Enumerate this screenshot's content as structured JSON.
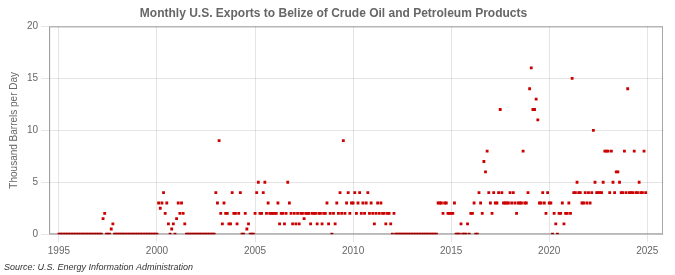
{
  "chart_data": {
    "type": "scatter",
    "title": "Monthly U.S. Exports to Belize of Crude Oil and Petroleum Products",
    "ylabel": "Thousand Barrels per Day",
    "annotation": "Source: U.S. Energy Information Administration",
    "color": "#cc0000",
    "marker": "square",
    "grid": true,
    "xlim": [
      1994.5,
      2025.8
    ],
    "xticks": [
      1995,
      2000,
      2005,
      2010,
      2015,
      2020,
      2025
    ],
    "ylim": [
      0,
      20
    ],
    "yticks": [
      0,
      5,
      10,
      15,
      20
    ],
    "x": [
      1995.0,
      1995.083,
      1995.167,
      1995.25,
      1995.333,
      1995.417,
      1995.5,
      1995.583,
      1995.667,
      1995.75,
      1995.833,
      1995.917,
      1996.0,
      1996.083,
      1996.167,
      1996.25,
      1996.333,
      1996.417,
      1996.5,
      1996.583,
      1996.667,
      1996.75,
      1996.833,
      1996.917,
      1997.0,
      1997.083,
      1997.167,
      1997.25,
      1997.333,
      1997.417,
      1997.5,
      1997.583,
      1997.667,
      1997.75,
      1997.833,
      1997.917,
      1998.0,
      1998.083,
      1998.167,
      1998.25,
      1998.333,
      1998.417,
      1998.5,
      1998.583,
      1998.667,
      1998.75,
      1998.833,
      1998.917,
      1999.0,
      1999.083,
      1999.167,
      1999.25,
      1999.333,
      1999.417,
      1999.5,
      1999.583,
      1999.667,
      1999.75,
      1999.833,
      1999.917,
      2000.0,
      2000.083,
      2000.167,
      2000.25,
      2000.333,
      2000.417,
      2000.5,
      2000.583,
      2000.667,
      2000.75,
      2000.833,
      2000.917,
      2001.0,
      2001.083,
      2001.167,
      2001.25,
      2001.333,
      2001.417,
      2001.5,
      2001.583,
      2001.667,
      2001.75,
      2001.833,
      2001.917,
      2002.0,
      2002.083,
      2002.167,
      2002.25,
      2002.333,
      2002.417,
      2002.5,
      2002.583,
      2002.667,
      2002.75,
      2002.833,
      2002.917,
      2003.0,
      2003.083,
      2003.167,
      2003.25,
      2003.333,
      2003.417,
      2003.5,
      2003.583,
      2003.667,
      2003.75,
      2003.833,
      2003.917,
      2004.0,
      2004.083,
      2004.167,
      2004.25,
      2004.333,
      2004.417,
      2004.5,
      2004.583,
      2004.667,
      2004.75,
      2004.833,
      2004.917,
      2005.0,
      2005.083,
      2005.167,
      2005.25,
      2005.333,
      2005.417,
      2005.5,
      2005.583,
      2005.667,
      2005.75,
      2005.833,
      2005.917,
      2006.0,
      2006.083,
      2006.167,
      2006.25,
      2006.333,
      2006.417,
      2006.5,
      2006.583,
      2006.667,
      2006.75,
      2006.833,
      2006.917,
      2007.0,
      2007.083,
      2007.167,
      2007.25,
      2007.333,
      2007.417,
      2007.5,
      2007.583,
      2007.667,
      2007.75,
      2007.833,
      2007.917,
      2008.0,
      2008.083,
      2008.167,
      2008.25,
      2008.333,
      2008.417,
      2008.5,
      2008.583,
      2008.667,
      2008.75,
      2008.833,
      2008.917,
      2009.0,
      2009.083,
      2009.167,
      2009.25,
      2009.333,
      2009.417,
      2009.5,
      2009.583,
      2009.667,
      2009.75,
      2009.833,
      2009.917,
      2010.0,
      2010.083,
      2010.167,
      2010.25,
      2010.333,
      2010.417,
      2010.5,
      2010.583,
      2010.667,
      2010.75,
      2010.833,
      2010.917,
      2011.0,
      2011.083,
      2011.167,
      2011.25,
      2011.333,
      2011.417,
      2011.5,
      2011.583,
      2011.667,
      2011.75,
      2011.833,
      2011.917,
      2012.0,
      2012.083,
      2012.167,
      2012.25,
      2012.333,
      2012.417,
      2012.5,
      2012.583,
      2012.667,
      2012.75,
      2012.833,
      2012.917,
      2013.0,
      2013.083,
      2013.167,
      2013.25,
      2013.333,
      2013.417,
      2013.5,
      2013.583,
      2013.667,
      2013.75,
      2013.833,
      2013.917,
      2014.0,
      2014.083,
      2014.167,
      2014.25,
      2014.333,
      2014.417,
      2014.5,
      2014.583,
      2014.667,
      2014.75,
      2014.833,
      2014.917,
      2015.0,
      2015.083,
      2015.167,
      2015.25,
      2015.333,
      2015.417,
      2015.5,
      2015.583,
      2015.667,
      2015.75,
      2015.833,
      2015.917,
      2016.0,
      2016.083,
      2016.167,
      2016.25,
      2016.333,
      2016.417,
      2016.5,
      2016.583,
      2016.667,
      2016.75,
      2016.833,
      2016.917,
      2017.0,
      2017.083,
      2017.167,
      2017.25,
      2017.333,
      2017.417,
      2017.5,
      2017.583,
      2017.667,
      2017.75,
      2017.833,
      2017.917,
      2018.0,
      2018.083,
      2018.167,
      2018.25,
      2018.333,
      2018.417,
      2018.5,
      2018.583,
      2018.667,
      2018.75,
      2018.833,
      2018.917,
      2019.0,
      2019.083,
      2019.167,
      2019.25,
      2019.333,
      2019.417,
      2019.5,
      2019.583,
      2019.667,
      2019.75,
      2019.833,
      2019.917,
      2020.0,
      2020.083,
      2020.167,
      2020.25,
      2020.333,
      2020.417,
      2020.5,
      2020.583,
      2020.667,
      2020.75,
      2020.833,
      2020.917,
      2021.0,
      2021.083,
      2021.167,
      2021.25,
      2021.333,
      2021.417,
      2021.5,
      2021.583,
      2021.667,
      2021.75,
      2021.833,
      2021.917,
      2022.0,
      2022.083,
      2022.167,
      2022.25,
      2022.333,
      2022.417,
      2022.5,
      2022.583,
      2022.667,
      2022.75,
      2022.833,
      2022.917,
      2023.0,
      2023.083,
      2023.167,
      2023.25,
      2023.333,
      2023.417,
      2023.5,
      2023.583,
      2023.667,
      2023.75,
      2023.833,
      2023.917,
      2024.0,
      2024.083,
      2024.167,
      2024.25,
      2024.333,
      2024.417,
      2024.5,
      2024.583,
      2024.667,
      2024.75,
      2024.833,
      2024.917
    ],
    "values": [
      0,
      0,
      0,
      0,
      0,
      0,
      0,
      0,
      0,
      0,
      0,
      0,
      0,
      0,
      0,
      0,
      0,
      0,
      0,
      0,
      0,
      0,
      0,
      0,
      0,
      0,
      0,
      1.5,
      2,
      0,
      0,
      0,
      0.5,
      1,
      0,
      0,
      0,
      0,
      0,
      0,
      0,
      0,
      0,
      0,
      0,
      0,
      0,
      0,
      0,
      0,
      0,
      0,
      0,
      0,
      0,
      0,
      0,
      0,
      0,
      0,
      0,
      3,
      2.5,
      3,
      4,
      2,
      3,
      1,
      0,
      0.5,
      1,
      0,
      1.5,
      3,
      2,
      3,
      2,
      1,
      0,
      0,
      0,
      0,
      0,
      0,
      0,
      0,
      0,
      0,
      0,
      0,
      0,
      0,
      0,
      0,
      0,
      0,
      4,
      3,
      9,
      2,
      1,
      3,
      2,
      2,
      1,
      1,
      4,
      2,
      2,
      1,
      2,
      4,
      0,
      0,
      2,
      0.5,
      1,
      0,
      0,
      0,
      2,
      4,
      5,
      2,
      2,
      4,
      5,
      2,
      3,
      2,
      2,
      2,
      2,
      2,
      3,
      1,
      2,
      2,
      1,
      2,
      5,
      3,
      2,
      1,
      2,
      1,
      2,
      1,
      2,
      2,
      1.5,
      2,
      2,
      2,
      1,
      2,
      2,
      2,
      1,
      2,
      2,
      1,
      2,
      2,
      3,
      1,
      2,
      0,
      2,
      1,
      3,
      2,
      4,
      2,
      9,
      2,
      3,
      4,
      2,
      3,
      3,
      4,
      2,
      3,
      4,
      2,
      3,
      2,
      3,
      4,
      2,
      3,
      2,
      1,
      2,
      3,
      2,
      3,
      2,
      2,
      1,
      2,
      2,
      1,
      0,
      2,
      0,
      0,
      0,
      0,
      0,
      0,
      0,
      0,
      0,
      0,
      0,
      0,
      0,
      0,
      0,
      0,
      0,
      0,
      0,
      0,
      0,
      0,
      0,
      0,
      0,
      0,
      3,
      3,
      3,
      2,
      3,
      3,
      2,
      2,
      2,
      2,
      3,
      0,
      0,
      0,
      1,
      0,
      0,
      0,
      1,
      0,
      2,
      2,
      3,
      0,
      0,
      4,
      3,
      2,
      7,
      6,
      8,
      4,
      3,
      2,
      4,
      3,
      3,
      4,
      12,
      4,
      3,
      3,
      3,
      3,
      4,
      3,
      4,
      3,
      2,
      3,
      3,
      3,
      8,
      3,
      3,
      4,
      14,
      16,
      12,
      12,
      13,
      11,
      3,
      3,
      4,
      3,
      2,
      4,
      3,
      3,
      0,
      2,
      1,
      0,
      2,
      2,
      3,
      1,
      2,
      2,
      3,
      2,
      15,
      4,
      4,
      5,
      4,
      4,
      3,
      3,
      4,
      3,
      4,
      3,
      4,
      10,
      5,
      4,
      4,
      4,
      4,
      5,
      8,
      8,
      8,
      4,
      8,
      5,
      4,
      6,
      6,
      5,
      4,
      4,
      8,
      4,
      14,
      4,
      4,
      4,
      8,
      4,
      4,
      5,
      4,
      4,
      8,
      4
    ]
  }
}
